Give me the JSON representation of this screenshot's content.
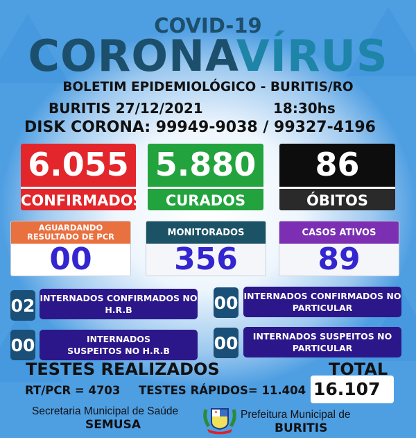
{
  "header": {
    "covid": "COVID-19",
    "corona": "CORONA",
    "virus": "VÍRUS",
    "subtitle": "BOLETIM EPIDEMIOLÓGICO - BURITIS/RO",
    "date": "BURITIS 27/12/2021",
    "time": "18:30hs",
    "disk": "DISK CORONA: 99949-9038 / 99327-4196"
  },
  "main": [
    {
      "value": "6.055",
      "label": "CONFIRMADOS",
      "color": "#e3262b"
    },
    {
      "value": "5.880",
      "label": "CURADOS",
      "color": "#22a33d"
    },
    {
      "value": "86",
      "label": "ÓBITOS",
      "color": "#111111"
    }
  ],
  "secondary": [
    {
      "label": "AGUARDANDO RESULTADO DE PCR",
      "value": "00",
      "color": "#e9703f"
    },
    {
      "label": "MONITORADOS",
      "value": "356",
      "color": "#1b5265"
    },
    {
      "label": "CASOS ATIVOS",
      "value": "89",
      "color": "#7c2fb2"
    }
  ],
  "internados": [
    {
      "count": "02",
      "label": "INTERNADOS CONFIRMADOS NO H.R.B"
    },
    {
      "count": "00",
      "label": "INTERNADOS CONFIRMADOS NO PARTICULAR"
    },
    {
      "count": "00",
      "label": "INTERNADOS SUSPEITOS NO H.R.B"
    },
    {
      "count": "00",
      "label": "INTERNADOS SUSPEITOS NO PARTICULAR"
    }
  ],
  "tests": {
    "title": "TESTES REALIZADOS",
    "total_label": "TOTAL",
    "rtpcr": "RT/PCR = 4703",
    "rapidos": "TESTES RÁPIDOS= 11.404",
    "total": "16.107"
  },
  "footer": {
    "secretaria": "Secretaria Municipal de Saúde",
    "semusa": "SEMUSA",
    "prefeitura": "Prefeitura Municipal de",
    "buritis": "BURITIS",
    "logo_icon": "municipal-coat-of-arms"
  }
}
